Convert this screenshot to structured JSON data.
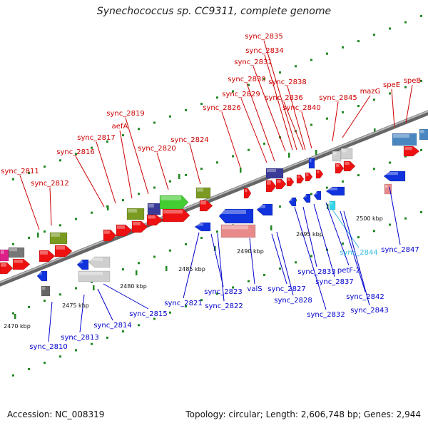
{
  "title": "Synechococcus sp. CC9311, complete genome",
  "footer": {
    "accession": "Accession: NC_008319",
    "summary": "Topology: circular; Length: 2,606,748 bp; Genes: 2,944"
  },
  "colors": {
    "forward_label": "#cc0000",
    "reverse_label": "#0000cc",
    "highlight_label": "#33bbdd",
    "backbone": "#888888",
    "tick": "#228822"
  },
  "scale_labels": [
    "2470 kbp",
    "2475 kbp",
    "2480 kbp",
    "2485 kbp",
    "2490 kbp",
    "2495 kbp",
    "2500 kbp"
  ],
  "forward_labels": [
    "sync_2811",
    "sync_2812",
    "sync_2816",
    "sync_2817",
    "aefA",
    "sync_2819",
    "sync_2820",
    "sync_2824",
    "sync_2826",
    "sync_2829",
    "sync_2830",
    "sync_2831",
    "sync_2834",
    "sync_2835",
    "sync_2836",
    "sync_2838",
    "sync_2840",
    "sync_2845",
    "mazG",
    "speE",
    "speB"
  ],
  "reverse_labels": [
    "sync_2810",
    "sync_2813",
    "sync_2814",
    "sync_2815",
    "sync_2821",
    "sync_2823",
    "sync_2822",
    "valS",
    "sync_2827",
    "sync_2828",
    "sync_2832",
    "sync_2833",
    "sync_2837",
    "petF-2",
    "sync_2844",
    "sync_2842",
    "sync_2843",
    "sync_2847"
  ]
}
